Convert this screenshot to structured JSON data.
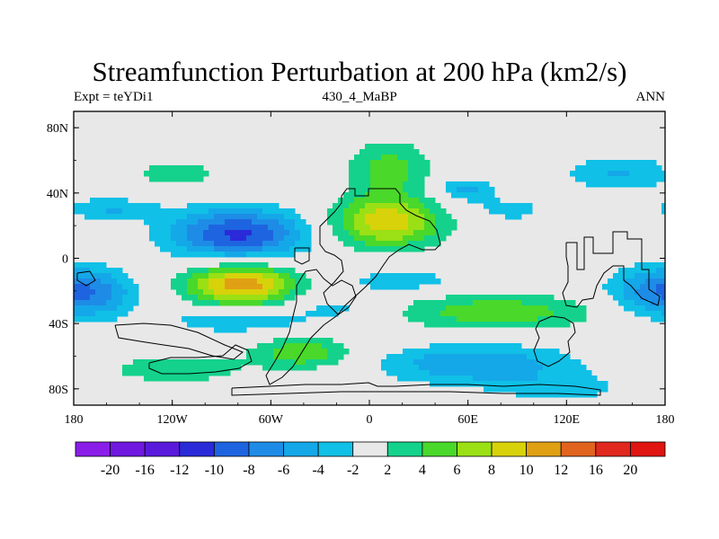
{
  "chart_data": {
    "type": "heatmap",
    "title": "Streamfunction Perturbation at 200 hPa (km2/s)",
    "left_string": "Expt = teYDi1",
    "center_string": "430_4_MaBP",
    "right_string": "ANN",
    "x_ticks": [
      {
        "value": -180,
        "label": "180"
      },
      {
        "value": -120,
        "label": "120W"
      },
      {
        "value": -60,
        "label": "60W"
      },
      {
        "value": 0,
        "label": "0"
      },
      {
        "value": 60,
        "label": "60E"
      },
      {
        "value": 120,
        "label": "120E"
      },
      {
        "value": 180,
        "label": "180"
      }
    ],
    "y_ticks": [
      {
        "value": 80,
        "label": "80N"
      },
      {
        "value": 40,
        "label": "40N"
      },
      {
        "value": 0,
        "label": "0"
      },
      {
        "value": -40,
        "label": "40S"
      },
      {
        "value": -80,
        "label": "80S"
      }
    ],
    "xlim": [
      -180,
      180
    ],
    "ylim": [
      -90,
      90
    ],
    "levels": [
      -20,
      -16,
      -12,
      -10,
      -8,
      -6,
      -4,
      -2,
      2,
      4,
      6,
      8,
      10,
      12,
      16,
      20
    ],
    "level_labels": [
      "-20",
      "-16",
      "-12",
      "-10",
      "-8",
      "-6",
      "-4",
      "-2",
      "2",
      "4",
      "6",
      "8",
      "10",
      "12",
      "16",
      "20"
    ],
    "colors": [
      "#8a1ee8",
      "#7018e0",
      "#5a1adc",
      "#2a2ad8",
      "#1e64e0",
      "#1e8ce6",
      "#14a8e8",
      "#10c0e6",
      "#e8e8e8",
      "#14d28c",
      "#4ad82a",
      "#9ae014",
      "#d8d20a",
      "#e0a014",
      "#e0641e",
      "#e0281e",
      "#e01410"
    ],
    "centers": [
      {
        "lon": 10,
        "lat": 22,
        "amp": 9.5,
        "slon": 24,
        "slat": 11
      },
      {
        "lon": 12,
        "lat": 55,
        "amp": 5.0,
        "slon": 18,
        "slat": 12
      },
      {
        "lon": -78,
        "lat": -16,
        "amp": 11.5,
        "slon": 24,
        "slat": 9
      },
      {
        "lon": -118,
        "lat": 52,
        "amp": 4.0,
        "slon": 18,
        "slat": 5
      },
      {
        "lon": -80,
        "lat": 15,
        "amp": -10.5,
        "slon": 30,
        "slat": 11
      },
      {
        "lon": -158,
        "lat": 30,
        "amp": -4.0,
        "slon": 20,
        "slat": 5
      },
      {
        "lon": 58,
        "lat": 42,
        "amp": -5.0,
        "slon": 12,
        "slat": 5
      },
      {
        "lon": 85,
        "lat": 30,
        "amp": -3.2,
        "slon": 16,
        "slat": 5
      },
      {
        "lon": 152,
        "lat": 52,
        "amp": -4.2,
        "slon": 24,
        "slat": 8
      },
      {
        "lon": -168,
        "lat": -22,
        "amp": -5.0,
        "slon": 20,
        "slat": 11
      },
      {
        "lon": 172,
        "lat": -20,
        "amp": -5.0,
        "slon": 22,
        "slat": 11
      },
      {
        "lon": 20,
        "lat": -14,
        "amp": -3.3,
        "slon": 28,
        "slat": 5
      },
      {
        "lon": -80,
        "lat": -38,
        "amp": -4.6,
        "slon": 28,
        "slat": 5
      },
      {
        "lon": -20,
        "lat": -30,
        "amp": -2.8,
        "slon": 20,
        "slat": 6
      },
      {
        "lon": 78,
        "lat": -33,
        "amp": 5.5,
        "slon": 44,
        "slat": 8
      },
      {
        "lon": -40,
        "lat": -58,
        "amp": 5.8,
        "slon": 22,
        "slat": 7
      },
      {
        "lon": -118,
        "lat": -68,
        "amp": 4.0,
        "slon": 28,
        "slat": 6
      },
      {
        "lon": 65,
        "lat": -65,
        "amp": -6.0,
        "slon": 42,
        "slat": 9
      },
      {
        "lon": 118,
        "lat": -80,
        "amp": -3.0,
        "slon": 26,
        "slat": 6
      }
    ]
  }
}
